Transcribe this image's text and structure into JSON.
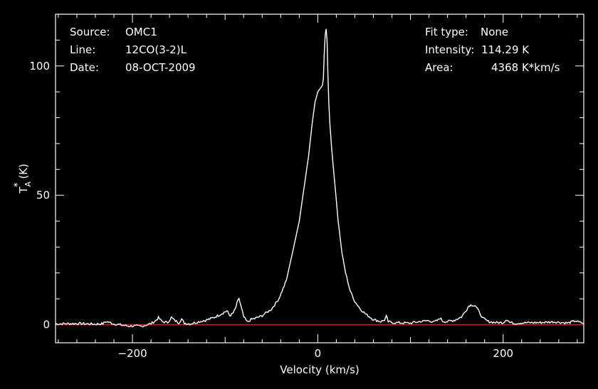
{
  "info": {
    "source_label": "Source:",
    "source_value": "OMC1",
    "line_label": "Line:",
    "line_value": "12CO(3-2)L",
    "date_label": "Date:",
    "date_value": "08-OCT-2009",
    "fit_label": "Fit type:",
    "fit_value": "None",
    "intensity_label": "Intensity:",
    "intensity_value": "114.29 K",
    "area_label": "Area:",
    "area_value": "4368 K*km/s"
  },
  "chart_data": {
    "type": "line",
    "title": "",
    "xlabel": "Velocity (km/s)",
    "ylabel_main": "T",
    "ylabel_super": "*",
    "ylabel_sub": "A",
    "ylabel_unit": "(K)",
    "xlim": [
      -283,
      287
    ],
    "ylim": [
      -7,
      120
    ],
    "xticks": [
      -200,
      0,
      200
    ],
    "xtick_labels": [
      "−200",
      "0",
      "200"
    ],
    "yticks": [
      0,
      50,
      100
    ],
    "ytick_labels": [
      "0",
      "50",
      "100"
    ],
    "baseline": 0,
    "colors": {
      "spectrum": "#ffffff",
      "baseline": "#cc2222",
      "axes": "#ffffff"
    },
    "series": [
      {
        "x": [
          -283,
          -270,
          -255,
          -240,
          -232,
          -228,
          -220,
          -205,
          -190,
          -180,
          -175,
          -172,
          -168,
          -162,
          -158,
          -155,
          -150,
          -147,
          -144,
          -138,
          -130,
          -120,
          -112,
          -106,
          -101,
          -98,
          -95,
          -92,
          -89,
          -87,
          -85,
          -83,
          -80,
          -76,
          -72,
          -67,
          -60,
          -50,
          -42,
          -34,
          -26,
          -20,
          -14,
          -10,
          -6,
          -3,
          0,
          2,
          4,
          5,
          6,
          7,
          8,
          9,
          10,
          11,
          12,
          13,
          15,
          18,
          22,
          26,
          30,
          35,
          40,
          46,
          52,
          60,
          68,
          72,
          74,
          76,
          80,
          90,
          100,
          110,
          120,
          125,
          130,
          132,
          135,
          140,
          148,
          155,
          160,
          163,
          166,
          170,
          174,
          178,
          184,
          192,
          200,
          204,
          207,
          212,
          220,
          240,
          255,
          270,
          278,
          282,
          287
        ],
        "y": [
          0.3,
          0.4,
          0.4,
          0.2,
          0.4,
          1.2,
          0.3,
          -0.5,
          -0.6,
          0.4,
          1.5,
          2.7,
          1.2,
          0.8,
          2.8,
          1.8,
          0.7,
          2.2,
          0.6,
          0.3,
          1.0,
          1.8,
          2.8,
          3.8,
          4.8,
          5.3,
          3.5,
          4.2,
          6.0,
          8.5,
          10.2,
          7.2,
          3.0,
          1.0,
          2.0,
          2.5,
          3.5,
          6.0,
          10.0,
          17.0,
          30.0,
          40.0,
          55.0,
          65.0,
          78.0,
          86.0,
          90.0,
          91.0,
          92.0,
          92.5,
          95.0,
          105.0,
          112.0,
          114.3,
          110.0,
          96.0,
          85.0,
          78.0,
          68.0,
          56.0,
          40.0,
          28.0,
          20.0,
          13.0,
          9.0,
          6.0,
          4.0,
          2.0,
          1.2,
          1.8,
          3.2,
          1.2,
          0.8,
          0.7,
          0.6,
          1.2,
          1.6,
          1.0,
          1.8,
          2.6,
          1.3,
          1.2,
          1.8,
          3.0,
          5.5,
          7.3,
          7.7,
          7.3,
          5.0,
          2.5,
          1.2,
          0.8,
          0.8,
          2.1,
          0.9,
          0.5,
          0.7,
          0.8,
          1.1,
          0.6,
          1.5,
          0.9,
          0.6
        ]
      }
    ]
  }
}
